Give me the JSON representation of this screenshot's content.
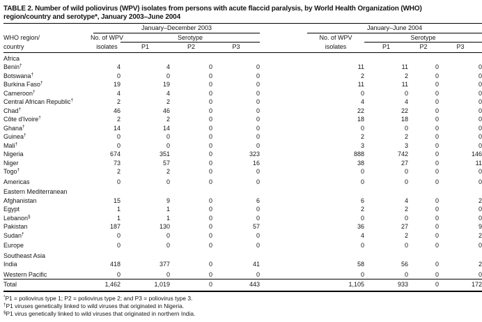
{
  "title": {
    "line1": "TABLE 2. Number of wild poliovirus (WPV) isolates from persons with acute flaccid paralysis, by World Health Organization (WHO)",
    "line2": "region/country and serotype*, January 2003–June 2004"
  },
  "header": {
    "region_col_line1": "WHO region/",
    "region_col_line2": "country",
    "groups": [
      {
        "label": "January–December 2003"
      },
      {
        "label": "January–June 2004"
      }
    ],
    "isolates_line1": "No. of WPV",
    "isolates_line2": "isolates",
    "serotype_label": "Serotype",
    "serotype_cols": [
      "P1",
      "P2",
      "P3"
    ]
  },
  "rows": [
    {
      "type": "section",
      "label": "Africa",
      "marker": ""
    },
    {
      "type": "country",
      "label": "Benin",
      "marker": "†",
      "values": [
        "4",
        "4",
        "0",
        "0",
        "11",
        "11",
        "0",
        "0"
      ]
    },
    {
      "type": "country",
      "label": "Botswana",
      "marker": "†",
      "values": [
        "0",
        "0",
        "0",
        "0",
        "2",
        "2",
        "0",
        "0"
      ]
    },
    {
      "type": "country",
      "label": "Burkina Faso",
      "marker": "†",
      "values": [
        "19",
        "19",
        "0",
        "0",
        "11",
        "11",
        "0",
        "0"
      ]
    },
    {
      "type": "country",
      "label": "Cameroon",
      "marker": "†",
      "values": [
        "4",
        "4",
        "0",
        "0",
        "0",
        "0",
        "0",
        "0"
      ]
    },
    {
      "type": "country",
      "label": "Central African Republic",
      "marker": "†",
      "values": [
        "2",
        "2",
        "0",
        "0",
        "4",
        "4",
        "0",
        "0"
      ]
    },
    {
      "type": "country",
      "label": "Chad",
      "marker": "†",
      "values": [
        "46",
        "46",
        "0",
        "0",
        "22",
        "22",
        "0",
        "0"
      ]
    },
    {
      "type": "country",
      "label": "Côte d'Ivoire",
      "marker": "†",
      "values": [
        "2",
        "2",
        "0",
        "0",
        "18",
        "18",
        "0",
        "0"
      ]
    },
    {
      "type": "country",
      "label": "Ghana",
      "marker": "†",
      "values": [
        "14",
        "14",
        "0",
        "0",
        "0",
        "0",
        "0",
        "0"
      ]
    },
    {
      "type": "country",
      "label": "Guinea",
      "marker": "†",
      "values": [
        "0",
        "0",
        "0",
        "0",
        "2",
        "2",
        "0",
        "0"
      ]
    },
    {
      "type": "country",
      "label": "Mali",
      "marker": "†",
      "values": [
        "0",
        "0",
        "0",
        "0",
        "3",
        "3",
        "0",
        "0"
      ]
    },
    {
      "type": "country",
      "label": "Nigeria",
      "marker": "",
      "values": [
        "674",
        "351",
        "0",
        "323",
        "888",
        "742",
        "0",
        "146"
      ]
    },
    {
      "type": "country",
      "label": "Niger",
      "marker": "",
      "values": [
        "73",
        "57",
        "0",
        "16",
        "38",
        "27",
        "0",
        "11"
      ]
    },
    {
      "type": "country",
      "label": "Togo",
      "marker": "†",
      "values": [
        "2",
        "2",
        "0",
        "0",
        "0",
        "0",
        "0",
        "0"
      ]
    },
    {
      "type": "region",
      "label": "Americas",
      "marker": "",
      "values": [
        "0",
        "0",
        "0",
        "0",
        "0",
        "0",
        "0",
        "0"
      ]
    },
    {
      "type": "section",
      "label": "Eastern Mediterranean",
      "marker": ""
    },
    {
      "type": "country",
      "label": "Afghanistan",
      "marker": "",
      "values": [
        "15",
        "9",
        "0",
        "6",
        "6",
        "4",
        "0",
        "2"
      ]
    },
    {
      "type": "country",
      "label": "Egypt",
      "marker": "",
      "values": [
        "1",
        "1",
        "0",
        "0",
        "2",
        "2",
        "0",
        "0"
      ]
    },
    {
      "type": "country",
      "label": "Lebanon",
      "marker": "§",
      "values": [
        "1",
        "1",
        "0",
        "0",
        "0",
        "0",
        "0",
        "0"
      ]
    },
    {
      "type": "country",
      "label": "Pakistan",
      "marker": "",
      "values": [
        "187",
        "130",
        "0",
        "57",
        "36",
        "27",
        "0",
        "9"
      ]
    },
    {
      "type": "country",
      "label": "Sudan",
      "marker": "†",
      "values": [
        "0",
        "0",
        "0",
        "0",
        "4",
        "2",
        "0",
        "2"
      ]
    },
    {
      "type": "region",
      "label": "Europe",
      "marker": "",
      "values": [
        "0",
        "0",
        "0",
        "0",
        "0",
        "0",
        "0",
        "0"
      ]
    },
    {
      "type": "section",
      "label": "Southeast Asia",
      "marker": ""
    },
    {
      "type": "country",
      "label": "India",
      "marker": "",
      "values": [
        "418",
        "377",
        "0",
        "41",
        "58",
        "56",
        "0",
        "2"
      ]
    },
    {
      "type": "region",
      "label": "Western Pacific",
      "marker": "",
      "values": [
        "0",
        "0",
        "0",
        "0",
        "0",
        "0",
        "0",
        "0"
      ]
    },
    {
      "type": "total",
      "label": "Total",
      "marker": "",
      "values": [
        "1,462",
        "1,019",
        "0",
        "443",
        "1,105",
        "933",
        "0",
        "172"
      ]
    }
  ],
  "footnotes": [
    {
      "marker": "*",
      "text": "P1 = poliovirus type 1; P2 = poliovirus type 2; and P3 = poliovirus type 3."
    },
    {
      "marker": "†",
      "text": "P1 viruses genetically linked to wild viruses that originated in Nigeria."
    },
    {
      "marker": "§",
      "text": "P1 virus genetically linked to wild viruses that originated in northern India."
    }
  ]
}
